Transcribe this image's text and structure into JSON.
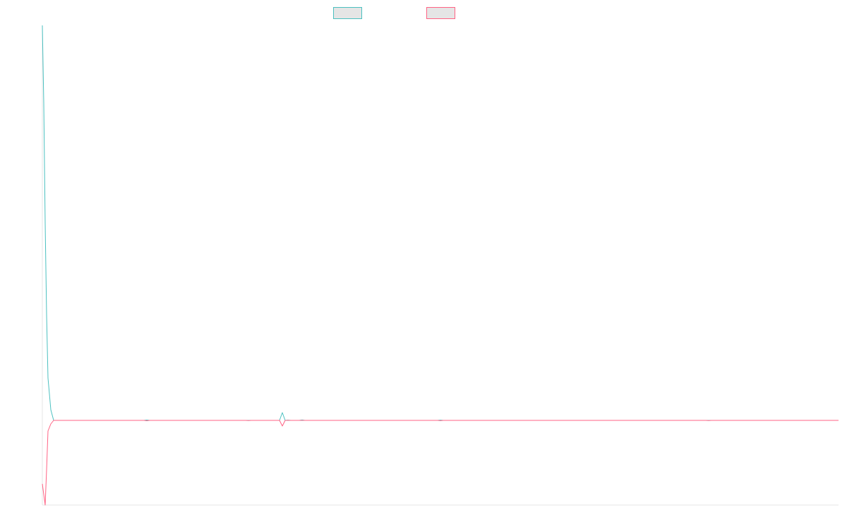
{
  "chart_data": {
    "type": "line",
    "title": "",
    "xlabel": "",
    "ylabel": "",
    "grid": false,
    "legend": "top-center",
    "x_range": [
      0,
      282
    ],
    "y_range": [
      -120,
      560
    ],
    "series": [
      {
        "name": "",
        "color": "#4bc0c0",
        "fill": "#e5e5e5",
        "points": [
          [
            0,
            560
          ],
          [
            0.5,
            450
          ],
          [
            1,
            280
          ],
          [
            1.5,
            150
          ],
          [
            2,
            60
          ],
          [
            3,
            15
          ],
          [
            4,
            0
          ],
          [
            36,
            0
          ],
          [
            37,
            0.5
          ],
          [
            38,
            0
          ],
          [
            86,
            0
          ],
          [
            87,
            0.4
          ],
          [
            88,
            0
          ],
          [
            84,
            0
          ],
          [
            85,
            11
          ],
          [
            86,
            0
          ],
          [
            91,
            0
          ],
          [
            92,
            0.6
          ],
          [
            93,
            0
          ],
          [
            140,
            0
          ],
          [
            141,
            0.4
          ],
          [
            142,
            0
          ],
          [
            282,
            0
          ]
        ]
      },
      {
        "name": "",
        "color": "#ff6384",
        "fill": "#e5e5e5",
        "points": [
          [
            0,
            -90
          ],
          [
            1,
            -120
          ],
          [
            1.5,
            -70
          ],
          [
            2,
            -15
          ],
          [
            3,
            -5
          ],
          [
            4,
            0
          ],
          [
            36,
            0
          ],
          [
            37,
            -0.5
          ],
          [
            38,
            0
          ],
          [
            72,
            0
          ],
          [
            73,
            -0.3
          ],
          [
            74,
            0
          ],
          [
            84,
            0
          ],
          [
            85,
            -8
          ],
          [
            86,
            0
          ],
          [
            140,
            0
          ],
          [
            141,
            -0.4
          ],
          [
            142,
            0
          ],
          [
            235,
            0
          ],
          [
            236,
            -0.3
          ],
          [
            237,
            0
          ],
          [
            282,
            0
          ]
        ]
      }
    ]
  }
}
